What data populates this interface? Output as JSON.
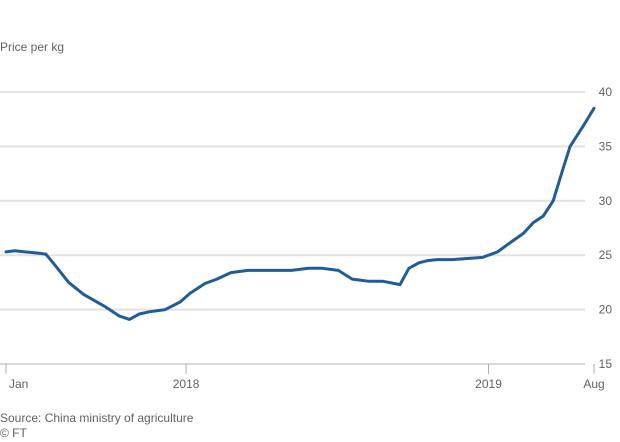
{
  "chart_data": {
    "type": "line",
    "title": "",
    "ylabel": "Price per kg",
    "xlabel": "",
    "ylim": [
      15,
      40
    ],
    "y_ticks": [
      15,
      20,
      25,
      30,
      35,
      40
    ],
    "y_tick_labels": [
      "15",
      "20",
      "25",
      "30",
      "35",
      "40"
    ],
    "x_range": [
      "2018-01-01",
      "2019-08-15"
    ],
    "x_ticks": [
      {
        "label": "Jan",
        "date": "2018-01-01"
      },
      {
        "label": "2018",
        "date": "2018-07-01"
      },
      {
        "label": "2019",
        "date": "2019-05-01"
      },
      {
        "label": "Aug",
        "date": "2019-08-15"
      }
    ],
    "y_axis_side": "right",
    "grid": "horizontal",
    "line_color": "#1f5c99",
    "gridline_color": "#e6e0dc",
    "series": [
      {
        "x": [
          "2018-01-01",
          "2018-01-10",
          "2018-01-20",
          "2018-02-01",
          "2018-02-10",
          "2018-02-20",
          "2018-03-05",
          "2018-03-20",
          "2018-04-10",
          "2018-04-25",
          "2018-05-05",
          "2018-05-15",
          "2018-05-25",
          "2018-06-10",
          "2018-06-25",
          "2018-07-05",
          "2018-07-20",
          "2018-08-01",
          "2018-08-15",
          "2018-09-01",
          "2018-09-15",
          "2018-10-01",
          "2018-10-15",
          "2018-11-01",
          "2018-11-15",
          "2018-12-01",
          "2018-12-15",
          "2019-01-01",
          "2019-01-15",
          "2019-02-01",
          "2019-02-10",
          "2019-02-20",
          "2019-03-01",
          "2019-03-10",
          "2019-03-25",
          "2019-04-10",
          "2019-04-25",
          "2019-05-10",
          "2019-05-25",
          "2019-06-05",
          "2019-06-15",
          "2019-06-25",
          "2019-07-05",
          "2019-07-15",
          "2019-07-22",
          "2019-07-29",
          "2019-08-05",
          "2019-08-15"
        ],
        "values": [
          25.3,
          25.4,
          25.3,
          25.2,
          25.1,
          24.0,
          22.5,
          21.4,
          20.3,
          19.4,
          19.1,
          19.6,
          19.8,
          20.0,
          20.7,
          21.5,
          22.4,
          22.8,
          23.4,
          23.6,
          23.6,
          23.6,
          23.6,
          23.8,
          23.8,
          23.6,
          22.8,
          22.6,
          22.6,
          22.3,
          23.8,
          24.3,
          24.5,
          24.6,
          24.6,
          24.7,
          24.8,
          25.3,
          26.3,
          27.0,
          28.0,
          28.6,
          30.0,
          33.0,
          35.0,
          36.0,
          37.0,
          38.5
        ]
      }
    ]
  },
  "source_line_1": "Source: China ministry of agriculture",
  "source_line_2": "© FT"
}
